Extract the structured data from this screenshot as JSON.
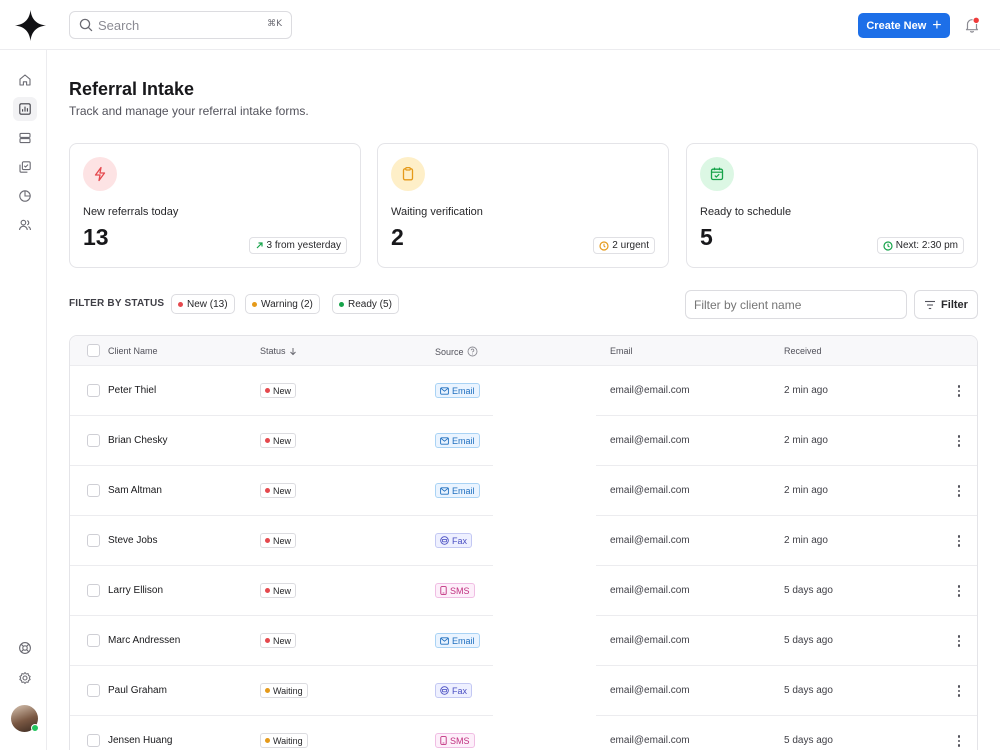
{
  "header": {
    "search": {
      "placeholder": "Search",
      "shortcut": "⌘K"
    },
    "create_label": "Create New",
    "notification_count_visible": true
  },
  "sidebar": {
    "items": [
      {
        "icon": "home-icon",
        "active": false
      },
      {
        "icon": "chart-icon",
        "active": true
      },
      {
        "icon": "stack-icon",
        "active": false
      },
      {
        "icon": "copy-check-icon",
        "active": false
      },
      {
        "icon": "pie-chart-icon",
        "active": false
      },
      {
        "icon": "users-icon",
        "active": false
      }
    ],
    "bottom_items": [
      {
        "icon": "help-icon"
      },
      {
        "icon": "settings-icon"
      }
    ]
  },
  "page": {
    "title": "Referral Intake",
    "subtitle": "Track and manage your referral intake forms."
  },
  "stats": [
    {
      "label": "New referrals today",
      "value": "13",
      "badge": "3 from yesterday",
      "icon": "lightning-icon",
      "color": "#e5484d"
    },
    {
      "label": "Waiting verification",
      "value": "2",
      "badge": "2 urgent",
      "icon": "clipboard-icon",
      "color": "#e59a1a"
    },
    {
      "label": "Ready to schedule",
      "value": "5",
      "badge": "Next: 2:30 pm",
      "icon": "calendar-check-icon",
      "color": "#16a34a"
    }
  ],
  "filters": {
    "label": "FILTER BY STATUS",
    "chips": [
      {
        "label": "New (13)",
        "color": "#e5484d"
      },
      {
        "label": "Warning (2)",
        "color": "#e59a1a"
      },
      {
        "label": "Ready (5)",
        "color": "#16a34a"
      }
    ],
    "client_placeholder": "Filter by client name",
    "filter_button": "Filter"
  },
  "table": {
    "columns": [
      "Client Name",
      "Status",
      "Source",
      "Email",
      "Received"
    ],
    "rows": [
      {
        "name": "Peter Thiel",
        "status": "New",
        "source": "Email",
        "email": "email@email.com",
        "received": "2 min ago"
      },
      {
        "name": "Brian Chesky",
        "status": "New",
        "source": "Email",
        "email": "email@email.com",
        "received": "2 min ago"
      },
      {
        "name": "Sam Altman",
        "status": "New",
        "source": "Email",
        "email": "email@email.com",
        "received": "2 min ago"
      },
      {
        "name": "Steve Jobs",
        "status": "New",
        "source": "Fax",
        "email": "email@email.com",
        "received": "2 min ago"
      },
      {
        "name": "Larry Ellison",
        "status": "New",
        "source": "SMS",
        "email": "email@email.com",
        "received": "5 days ago"
      },
      {
        "name": "Marc Andressen",
        "status": "New",
        "source": "Email",
        "email": "email@email.com",
        "received": "5 days ago"
      },
      {
        "name": "Paul Graham",
        "status": "Waiting",
        "source": "Fax",
        "email": "email@email.com",
        "received": "5 days ago"
      },
      {
        "name": "Jensen Huang",
        "status": "Waiting",
        "source": "SMS",
        "email": "email@email.com",
        "received": "5 days ago"
      }
    ]
  },
  "colors": {
    "accent": "#1d6fe8",
    "new": "#e5484d",
    "waiting": "#e59a1a",
    "ready": "#16a34a"
  }
}
